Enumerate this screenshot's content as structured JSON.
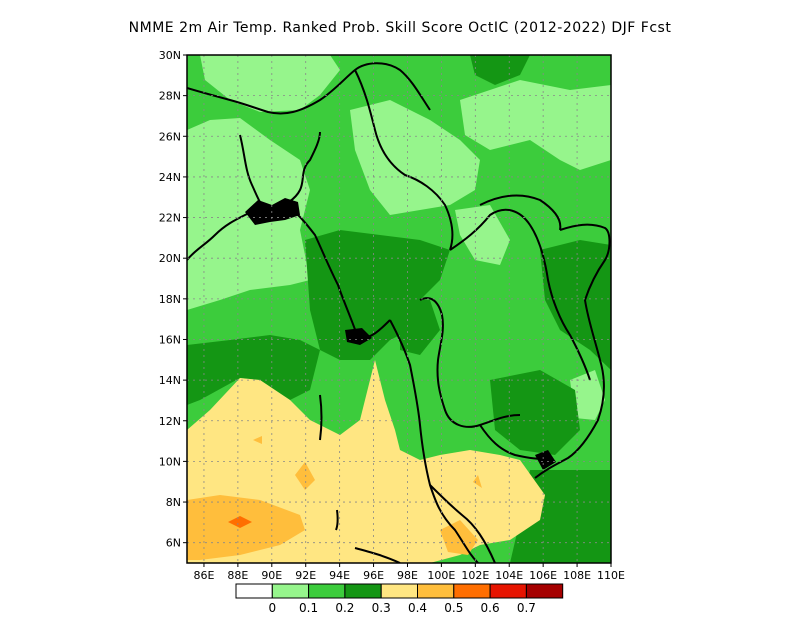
{
  "title": "NMME  2m Air Temp. Ranked Prob. Skill Score OctIC (2012-2022) DJF Fcst",
  "map": {
    "lon_range": [
      85,
      110
    ],
    "lat_range": [
      5,
      30
    ],
    "lon_ticks": [
      "86E",
      "88E",
      "90E",
      "92E",
      "94E",
      "96E",
      "98E",
      "100E",
      "102E",
      "104E",
      "106E",
      "108E",
      "110E"
    ],
    "lat_ticks": [
      "6N",
      "8N",
      "10N",
      "12N",
      "14N",
      "16N",
      "18N",
      "20N",
      "22N",
      "24N",
      "26N",
      "28N",
      "30N"
    ],
    "grid": true
  },
  "colorbar": {
    "colors": [
      "#ffffff",
      "#96f58c",
      "#3ccc3c",
      "#149614",
      "#ffe682",
      "#ffbe3c",
      "#ff6e00",
      "#e61400",
      "#a50000"
    ],
    "labels": [
      "0",
      "0.1",
      "0.2",
      "0.3",
      "0.4",
      "0.5",
      "0.6",
      "0.7"
    ]
  }
}
